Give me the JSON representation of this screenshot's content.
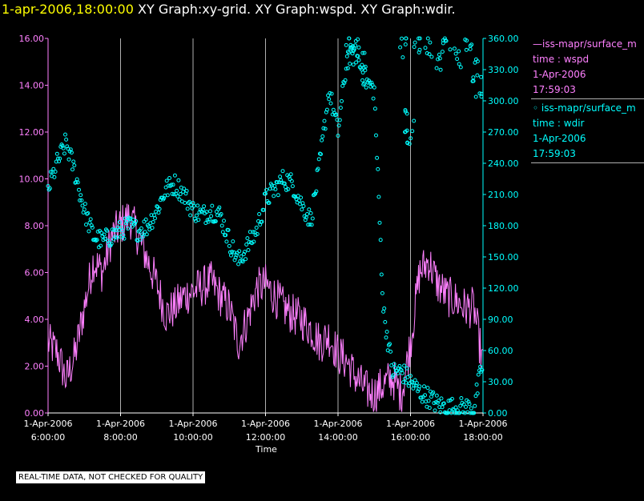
{
  "title": {
    "date": "1-apr-2006,18:00:00",
    "graphs": "XY Graph:xy-grid.  XY Graph:wspd.  XY Graph:wdir."
  },
  "legend": [
    {
      "prefix": "—",
      "series": "iss-mapr/surface_m",
      "var": "time : wspd",
      "date": "1-Apr-2006",
      "time": "17:59:03",
      "color": "#ff80ff"
    },
    {
      "prefix": "◦ ",
      "series": "iss-mapr/surface_m",
      "var": "time : wdir",
      "date": "1-Apr-2006",
      "time": "17:59:03",
      "color": "#00ffff"
    }
  ],
  "notice": "REAL-TIME DATA, NOT CHECKED FOR QUALITY",
  "colors": {
    "wspd": "#ff80ff",
    "wdir": "#00ffff",
    "grid": "#b0b0b0",
    "axis": "#ffffff"
  },
  "chart_data": {
    "type": "line",
    "xlabel": "Time",
    "xlim": [
      6,
      18
    ],
    "x_ticks": [
      {
        "value": 6,
        "date": "1-Apr-2006",
        "time": "6:00:00"
      },
      {
        "value": 8,
        "date": "1-Apr-2006",
        "time": "8:00:00"
      },
      {
        "value": 10,
        "date": "1-Apr-2006",
        "time": "10:00:00"
      },
      {
        "value": 12,
        "date": "1-Apr-2006",
        "time": "12:00:00"
      },
      {
        "value": 14,
        "date": "1-Apr-2006",
        "time": "14:00:00"
      },
      {
        "value": 16,
        "date": "1-Apr-2006",
        "time": "16:00:00"
      },
      {
        "value": 18,
        "date": "1-Apr-2006",
        "time": "18:00:00"
      }
    ],
    "y_left": {
      "lim": [
        0,
        16
      ],
      "ticks": [
        "0.00",
        "2.00",
        "4.00",
        "6.00",
        "8.00",
        "10.00",
        "12.00",
        "14.00",
        "16.00"
      ]
    },
    "y_right": {
      "lim": [
        0,
        360
      ],
      "ticks": [
        "0.00",
        "30.00",
        "60.00",
        "90.00",
        "120.00",
        "150.00",
        "180.00",
        "210.00",
        "240.00",
        "270.00",
        "300.00",
        "330.00",
        "360.00"
      ]
    },
    "series": [
      {
        "name": "wspd",
        "style": "line",
        "axis": "left",
        "x": [
          6.0,
          6.25,
          6.5,
          6.75,
          7.0,
          7.25,
          7.5,
          7.75,
          8.0,
          8.25,
          8.5,
          8.75,
          9.0,
          9.25,
          9.5,
          9.75,
          10.0,
          10.25,
          10.5,
          10.75,
          11.0,
          11.25,
          11.5,
          11.75,
          12.0,
          12.25,
          12.5,
          12.75,
          13.0,
          13.25,
          13.5,
          13.75,
          14.0,
          14.25,
          14.5,
          14.75,
          15.0,
          15.25,
          15.5,
          15.75,
          16.0,
          16.25,
          16.5,
          16.75,
          17.0,
          17.25,
          17.5,
          17.75,
          18.0
        ],
        "y": [
          3.0,
          2.6,
          1.4,
          2.5,
          4.5,
          6.5,
          6.0,
          7.5,
          8.0,
          8.4,
          7.5,
          6.5,
          5.5,
          4.2,
          4.5,
          5.0,
          5.2,
          5.4,
          5.6,
          5.0,
          4.5,
          3.0,
          4.0,
          5.3,
          5.5,
          5.0,
          4.5,
          4.2,
          4.0,
          3.6,
          3.0,
          3.3,
          2.5,
          2.2,
          1.5,
          1.0,
          0.8,
          1.2,
          1.5,
          0.8,
          3.0,
          6.0,
          6.5,
          5.5,
          5.0,
          4.8,
          4.5,
          4.5,
          2.0
        ],
        "noise": 0.9
      },
      {
        "name": "wdir",
        "style": "scatter",
        "axis": "right",
        "x": [
          6.0,
          6.25,
          6.5,
          6.75,
          7.0,
          7.25,
          7.5,
          7.75,
          8.0,
          8.25,
          8.5,
          8.75,
          9.0,
          9.25,
          9.5,
          9.75,
          10.0,
          10.25,
          10.5,
          10.75,
          11.0,
          11.25,
          11.5,
          11.75,
          12.0,
          12.25,
          12.5,
          12.75,
          13.0,
          13.25,
          13.5,
          13.75,
          14.0,
          14.25,
          14.5,
          14.75,
          15.0,
          15.25,
          15.5,
          15.75,
          16.0,
          16.25,
          16.5,
          16.75,
          17.0,
          17.25,
          17.5,
          17.75,
          18.0
        ],
        "y": [
          215,
          240,
          260,
          230,
          195,
          170,
          165,
          170,
          175,
          180,
          175,
          180,
          195,
          215,
          220,
          210,
          195,
          190,
          195,
          190,
          165,
          145,
          160,
          175,
          205,
          215,
          225,
          220,
          200,
          185,
          240,
          310,
          270,
          340,
          345,
          320,
          310,
          100,
          40,
          40,
          30,
          20,
          15,
          8,
          5,
          5,
          5,
          5,
          50
        ],
        "noise": 10,
        "extra_points": [
          {
            "x": 14.3,
            "y": 355
          },
          {
            "x": 14.5,
            "y": 350
          },
          {
            "x": 14.7,
            "y": 335
          },
          {
            "x": 15.8,
            "y": 350
          },
          {
            "x": 15.9,
            "y": 280
          },
          {
            "x": 16.0,
            "y": 270
          },
          {
            "x": 16.2,
            "y": 358
          },
          {
            "x": 16.5,
            "y": 350
          },
          {
            "x": 16.8,
            "y": 340
          },
          {
            "x": 17.0,
            "y": 355
          },
          {
            "x": 17.3,
            "y": 340
          },
          {
            "x": 17.6,
            "y": 350
          },
          {
            "x": 17.8,
            "y": 330
          },
          {
            "x": 17.9,
            "y": 315
          }
        ]
      }
    ]
  }
}
